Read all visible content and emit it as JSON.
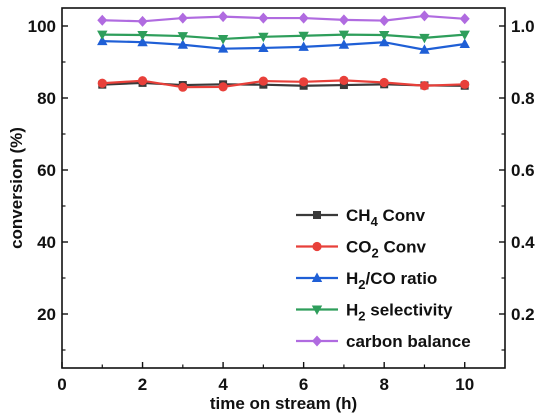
{
  "chart_data": {
    "type": "line",
    "title": "",
    "xlabel": "time on stream (h)",
    "ylabel": "conversion (%)",
    "xlim": [
      0,
      11
    ],
    "ylim": [
      5,
      105
    ],
    "y2lim": [
      0.05,
      1.05
    ],
    "x_ticks": [
      "0",
      "2",
      "4",
      "6",
      "8",
      "10"
    ],
    "y_ticks": [
      "20",
      "40",
      "60",
      "80",
      "100"
    ],
    "y2_ticks": [
      "0.2",
      "0.4",
      "0.6",
      "0.8",
      "1.0"
    ],
    "grid": false,
    "legend_position": "bottom-right",
    "x": [
      1,
      2,
      3,
      4,
      5,
      6,
      7,
      8,
      9,
      10
    ],
    "series": [
      {
        "name_main": "CH",
        "name_sub": "4",
        "name_rest": " Conv",
        "axis": "right",
        "color": "#3a3a3a",
        "marker": "square",
        "values": [
          0.837,
          0.842,
          0.836,
          0.838,
          0.837,
          0.834,
          0.836,
          0.838,
          0.835,
          0.834
        ]
      },
      {
        "name_main": "CO",
        "name_sub": "2",
        "name_rest": " Conv",
        "axis": "right",
        "color": "#e8403a",
        "marker": "circle",
        "values": [
          0.841,
          0.848,
          0.83,
          0.831,
          0.847,
          0.845,
          0.849,
          0.843,
          0.834,
          0.838
        ]
      },
      {
        "name_main": "H",
        "name_sub": "2",
        "name_rest": "/CO ratio",
        "axis": "right",
        "color": "#1f5fd6",
        "marker": "triangle-up",
        "values": [
          0.958,
          0.955,
          0.948,
          0.937,
          0.939,
          0.942,
          0.948,
          0.955,
          0.934,
          0.95
        ]
      },
      {
        "name_main": "H",
        "name_sub": "2",
        "name_rest": " selectivity",
        "axis": "right",
        "color": "#2e9e5b",
        "marker": "triangle-down",
        "values": [
          0.976,
          0.975,
          0.972,
          0.964,
          0.97,
          0.973,
          0.976,
          0.975,
          0.967,
          0.976
        ]
      },
      {
        "name_main": "carbon balance",
        "name_sub": "",
        "name_rest": "",
        "axis": "right",
        "color": "#b06be0",
        "marker": "diamond",
        "values": [
          1.016,
          1.013,
          1.022,
          1.026,
          1.022,
          1.022,
          1.017,
          1.015,
          1.028,
          1.02
        ]
      }
    ]
  }
}
